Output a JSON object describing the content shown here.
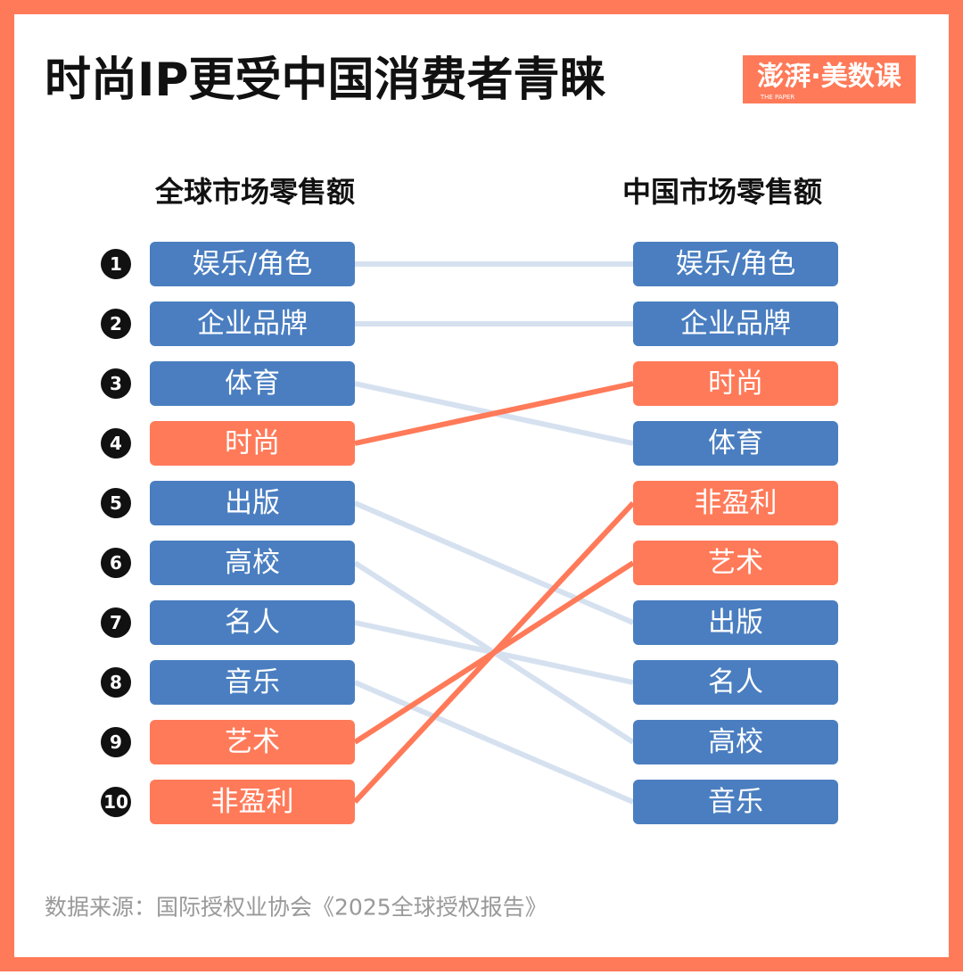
{
  "header": {
    "title": "时尚IP更受中国消费者青睐",
    "logo": "澎湃·美数课",
    "logo_sub": "THE PAPER"
  },
  "left": {
    "title": "全球市场零售额",
    "ranks": [
      "1",
      "2",
      "3",
      "4",
      "5",
      "6",
      "7",
      "8",
      "9",
      "10"
    ],
    "items": [
      {
        "label": "娱乐/角色",
        "color": "#4a7ec0",
        "link_color": "#d6e1f0"
      },
      {
        "label": "企业品牌",
        "color": "#4a7ec0",
        "link_color": "#d6e1f0"
      },
      {
        "label": "体育",
        "color": "#4a7ec0",
        "link_color": "#d6e1f0"
      },
      {
        "label": "时尚",
        "color": "#ff7a59",
        "link_color": "#ff7a59"
      },
      {
        "label": "出版",
        "color": "#4a7ec0",
        "link_color": "#d6e1f0"
      },
      {
        "label": "高校",
        "color": "#4a7ec0",
        "link_color": "#d6e1f0"
      },
      {
        "label": "名人",
        "color": "#4a7ec0",
        "link_color": "#d6e1f0"
      },
      {
        "label": "音乐",
        "color": "#4a7ec0",
        "link_color": "#d6e1f0"
      },
      {
        "label": "艺术",
        "color": "#ff7a59",
        "link_color": "#ff7a59"
      },
      {
        "label": "非盈利",
        "color": "#ff7a59",
        "link_color": "#ff7a59"
      }
    ]
  },
  "right": {
    "title": "中国市场零售额",
    "items": [
      {
        "label": "娱乐/角色",
        "color": "#4a7ec0"
      },
      {
        "label": "企业品牌",
        "color": "#4a7ec0"
      },
      {
        "label": "时尚",
        "color": "#ff7a59"
      },
      {
        "label": "体育",
        "color": "#4a7ec0"
      },
      {
        "label": "非盈利",
        "color": "#ff7a59"
      },
      {
        "label": "艺术",
        "color": "#ff7a59"
      },
      {
        "label": "出版",
        "color": "#4a7ec0"
      },
      {
        "label": "名人",
        "color": "#4a7ec0"
      },
      {
        "label": "高校",
        "color": "#4a7ec0"
      },
      {
        "label": "音乐",
        "color": "#4a7ec0"
      }
    ]
  },
  "footer": {
    "source": "数据来源：国际授权业协会《2025全球授权报告》"
  }
}
